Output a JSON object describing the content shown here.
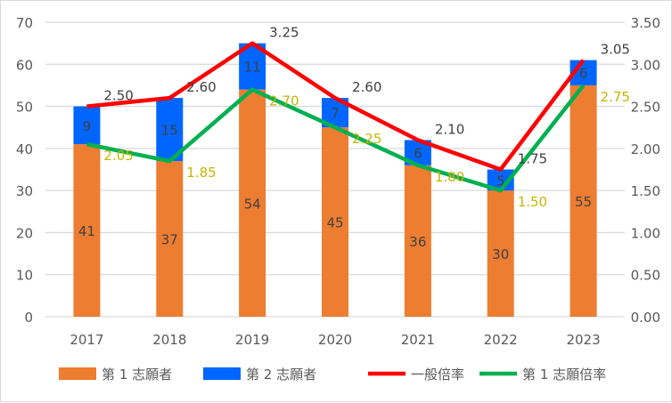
{
  "chart_data": {
    "type": "bar",
    "categories": [
      "2017",
      "2018",
      "2019",
      "2020",
      "2021",
      "2022",
      "2023"
    ],
    "series": [
      {
        "name": "第 1 志願者",
        "kind": "bar",
        "axis": "left",
        "color": "#ED7D31",
        "values": [
          41,
          37,
          54,
          45,
          36,
          30,
          55
        ]
      },
      {
        "name": "第 2 志願者",
        "kind": "bar",
        "axis": "left",
        "color": "#0066FF",
        "values": [
          9,
          15,
          11,
          7,
          6,
          5,
          6
        ]
      },
      {
        "name": "一般倍率",
        "kind": "line",
        "axis": "right",
        "color": "#FF0000",
        "values": [
          2.5,
          2.6,
          3.25,
          2.6,
          2.1,
          1.75,
          3.05
        ],
        "labels": [
          "2.50",
          "2.60",
          "3.25",
          "2.60",
          "2.10",
          "1.75",
          "3.05"
        ]
      },
      {
        "name": "第 1 志願倍率",
        "kind": "line",
        "axis": "right",
        "color": "#00B050",
        "values": [
          2.05,
          1.85,
          2.7,
          2.25,
          1.8,
          1.5,
          2.75
        ],
        "labels": [
          "2.05",
          "1.85",
          "2.70",
          "2.25",
          "1.80",
          "1.50",
          "2.75"
        ]
      }
    ],
    "ylim": [
      0,
      70
    ],
    "y2lim": [
      0,
      3.5
    ],
    "yticks": [
      "0",
      "10",
      "20",
      "30",
      "40",
      "50",
      "60",
      "70"
    ],
    "y2ticks": [
      "0.00",
      "0.50",
      "1.00",
      "1.50",
      "2.00",
      "2.50",
      "3.00",
      "3.50"
    ],
    "grid": true,
    "legend": "bottom"
  }
}
